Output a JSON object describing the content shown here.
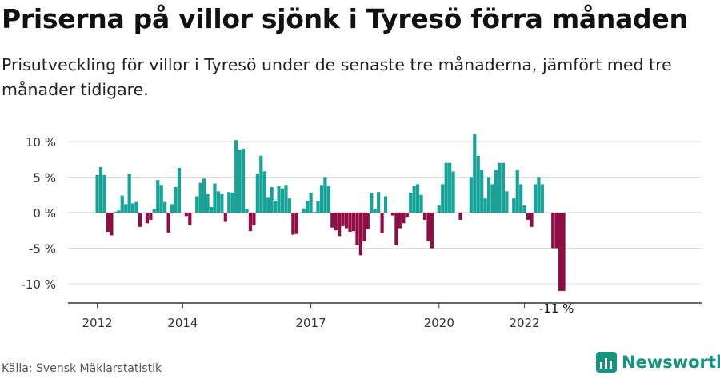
{
  "title": "Priserna på villor sjönk i Tyresö förra månaden",
  "subtitle": "Prisutveckling för villor i Tyresö under de senaste tre månaderna, jämfört med tre månader tidigare.",
  "source": "Källa: Svensk Mäklarstatistik",
  "brand": "Newsworthy",
  "colors": {
    "positive": "#17a398",
    "negative": "#920c45",
    "grid": "#dddddd",
    "axis": "#333333",
    "brand": "#14957f"
  },
  "chart_data": {
    "type": "bar",
    "title": "Priserna på villor sjönk i Tyresö förra månaden",
    "xlabel": "",
    "ylabel": "",
    "ylim": [
      -11.5,
      12
    ],
    "yticks": [
      10,
      5,
      0,
      -5,
      -10
    ],
    "ytick_labels": [
      "10 %",
      "5 %",
      "0 %",
      "-5 %",
      "-10 %"
    ],
    "xticks": [
      "2012",
      "2014",
      "2017",
      "2020",
      "2022"
    ],
    "xtick_positions": [
      "2012-01",
      "2014-01",
      "2017-01",
      "2020-01",
      "2022-01"
    ],
    "start": "2012-01",
    "frequency": "monthly",
    "annotation": {
      "text": "-11 %",
      "at": "2022-10"
    },
    "values": [
      5.3,
      6.4,
      5.3,
      -2.7,
      -3.2,
      0.1,
      0.3,
      2.4,
      1.2,
      5.5,
      1.3,
      1.5,
      -2.0,
      0.0,
      -1.5,
      -1.0,
      0.5,
      4.6,
      3.9,
      1.5,
      -2.8,
      1.2,
      3.6,
      6.3,
      0.0,
      -0.5,
      -1.8,
      0.0,
      2.3,
      4.2,
      4.8,
      2.6,
      0.8,
      4.1,
      3.0,
      2.6,
      -1.3,
      2.9,
      2.8,
      10.2,
      8.8,
      9.0,
      0.5,
      -2.6,
      -1.8,
      5.5,
      8.0,
      5.8,
      2.1,
      3.6,
      1.7,
      3.7,
      3.4,
      3.9,
      2.0,
      -3.1,
      -3.0,
      0.0,
      0.6,
      1.6,
      2.8,
      0.1,
      1.6,
      3.9,
      5.0,
      3.8,
      -2.1,
      -2.5,
      -3.3,
      -1.9,
      -2.2,
      -2.7,
      -2.6,
      -4.6,
      -6.0,
      -4.0,
      -2.3,
      2.7,
      0.5,
      2.9,
      -2.9,
      2.3,
      0.0,
      -0.4,
      -4.6,
      -2.2,
      -1.5,
      -0.7,
      2.8,
      3.8,
      4.0,
      2.5,
      -1.0,
      -4.0,
      -5.0,
      0.0,
      1.0,
      4.0,
      7.0,
      7.0,
      5.8,
      0.0,
      -1.0,
      0.0,
      0.0,
      5.0,
      11.0,
      8.0,
      6.0,
      2.0,
      5.0,
      4.0,
      6.0,
      7.0,
      7.0,
      3.0,
      0.0,
      2.0,
      6.0,
      4.0,
      1.0,
      -1.0,
      -2.0,
      4.0,
      5.0,
      4.0,
      0.0,
      0.0,
      -5.0,
      -5.0,
      -11.0,
      -11.0
    ]
  }
}
